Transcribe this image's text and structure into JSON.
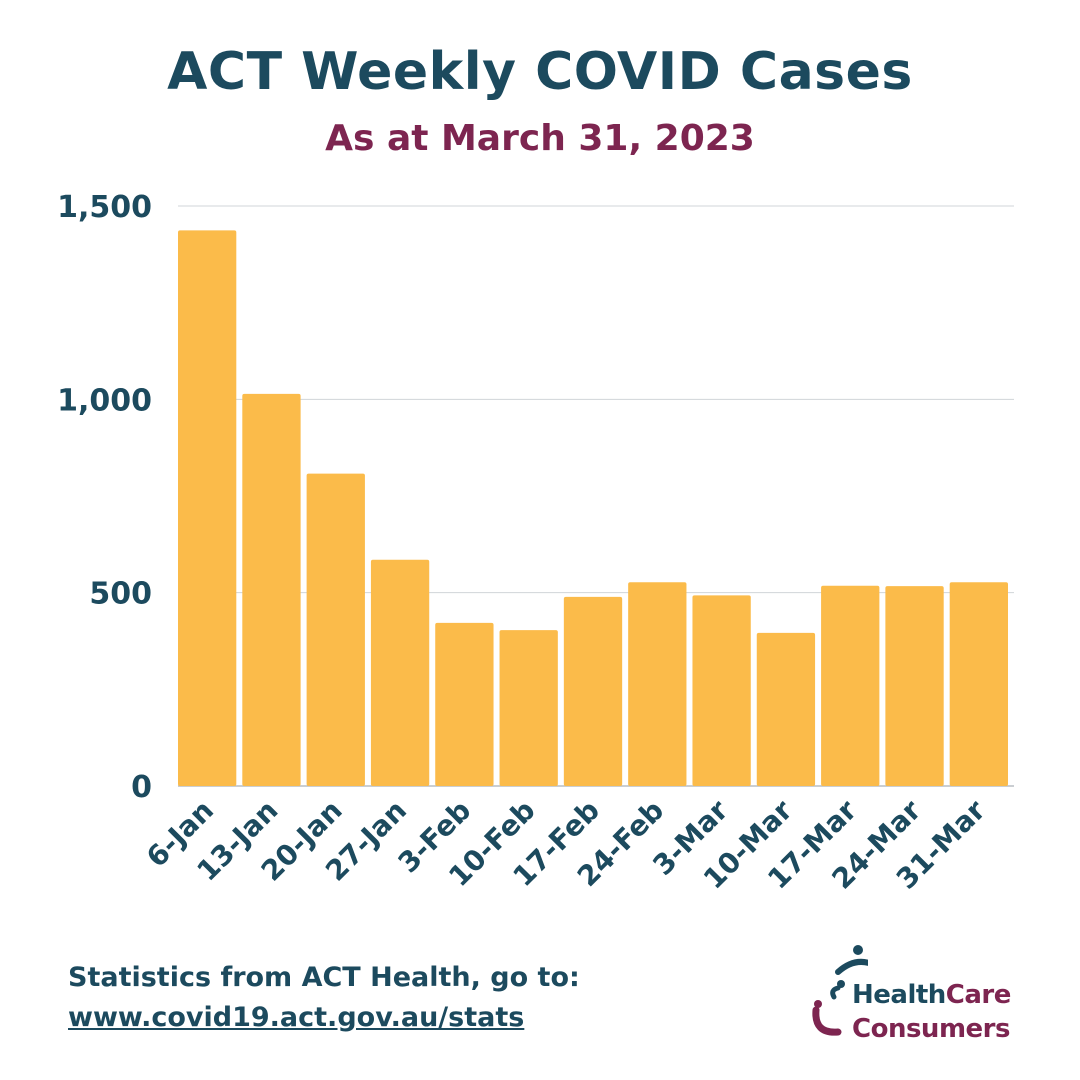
{
  "title": "ACT Weekly COVID Cases",
  "subtitle": "As at March 31, 2023",
  "footer": {
    "source_text": "Statistics from ACT Health, go to:",
    "link_text": "www.covid19.act.gov.au/stats"
  },
  "logo": {
    "word_health": "Health",
    "word_care": "Care",
    "word_consumers": "Consumers"
  },
  "colors": {
    "bar": "#fbbb4a",
    "title": "#1c4a5e",
    "subtitle": "#7d2550",
    "grid": "#d0d4d8"
  },
  "chart_data": {
    "type": "bar",
    "categories": [
      "6-Jan",
      "13-Jan",
      "20-Jan",
      "27-Jan",
      "3-Feb",
      "10-Feb",
      "17-Feb",
      "24-Feb",
      "3-Mar",
      "10-Mar",
      "17-Mar",
      "24-Mar",
      "31-Mar"
    ],
    "values": [
      1437,
      1014,
      808,
      585,
      422,
      403,
      489,
      527,
      493,
      396,
      518,
      517,
      527
    ],
    "ylim": [
      0,
      1500
    ],
    "yticks": [
      0,
      500,
      1000,
      1500
    ],
    "ytick_labels": [
      "0",
      "500",
      "1,000",
      "1,500"
    ],
    "grid": true,
    "legend": "none"
  }
}
